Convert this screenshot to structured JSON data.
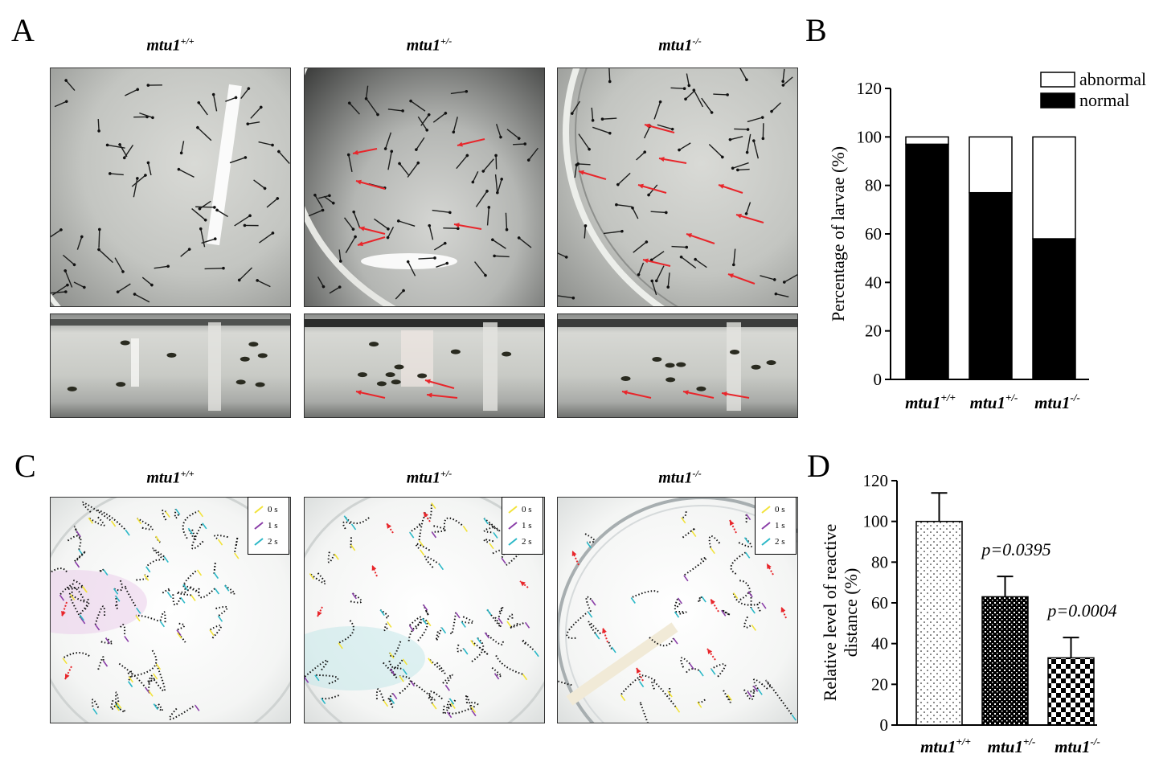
{
  "panels": {
    "a": "A",
    "b": "B",
    "c": "C",
    "d": "D"
  },
  "genotypes": [
    {
      "base": "mtu1",
      "sup": "+/+"
    },
    {
      "base": "mtu1",
      "sup": "+/-"
    },
    {
      "base": "mtu1",
      "sup": "-/-"
    }
  ],
  "timeLegend": [
    "0 s",
    "1 s",
    "2 s"
  ],
  "colors": {
    "arrow": "#e8262b",
    "normal": "#000000",
    "abnormal": "#ffffff",
    "t0": "#f2e33a",
    "t1": "#8a3ea8",
    "t2": "#2bb8c7"
  },
  "chart_data": [
    {
      "type": "bar",
      "stacked": true,
      "categories": [
        "mtu1+/+",
        "mtu1+/-",
        "mtu1-/-"
      ],
      "series": [
        {
          "name": "normal",
          "values": [
            97,
            77,
            58
          ]
        },
        {
          "name": "abnormal",
          "values": [
            3,
            23,
            42
          ]
        }
      ],
      "ylabel": "Percentage of larvae (%)",
      "ylim": [
        0,
        120
      ],
      "yticks": [
        0,
        20,
        40,
        60,
        80,
        100,
        120
      ],
      "legend": "top-right"
    },
    {
      "type": "bar",
      "categories": [
        "mtu1+/+",
        "mtu1+/-",
        "mtu1-/-"
      ],
      "values": [
        100,
        63,
        33
      ],
      "errors": [
        14,
        10,
        10
      ],
      "patterns": [
        "dots",
        "crosshatch",
        "checker"
      ],
      "annotations": [
        "",
        "p=0.0395",
        "p=0.0004"
      ],
      "ylabel": "Relative level of reactive distance (%)",
      "ylim": [
        0,
        120
      ],
      "yticks": [
        0,
        20,
        40,
        60,
        80,
        100,
        120
      ]
    }
  ]
}
